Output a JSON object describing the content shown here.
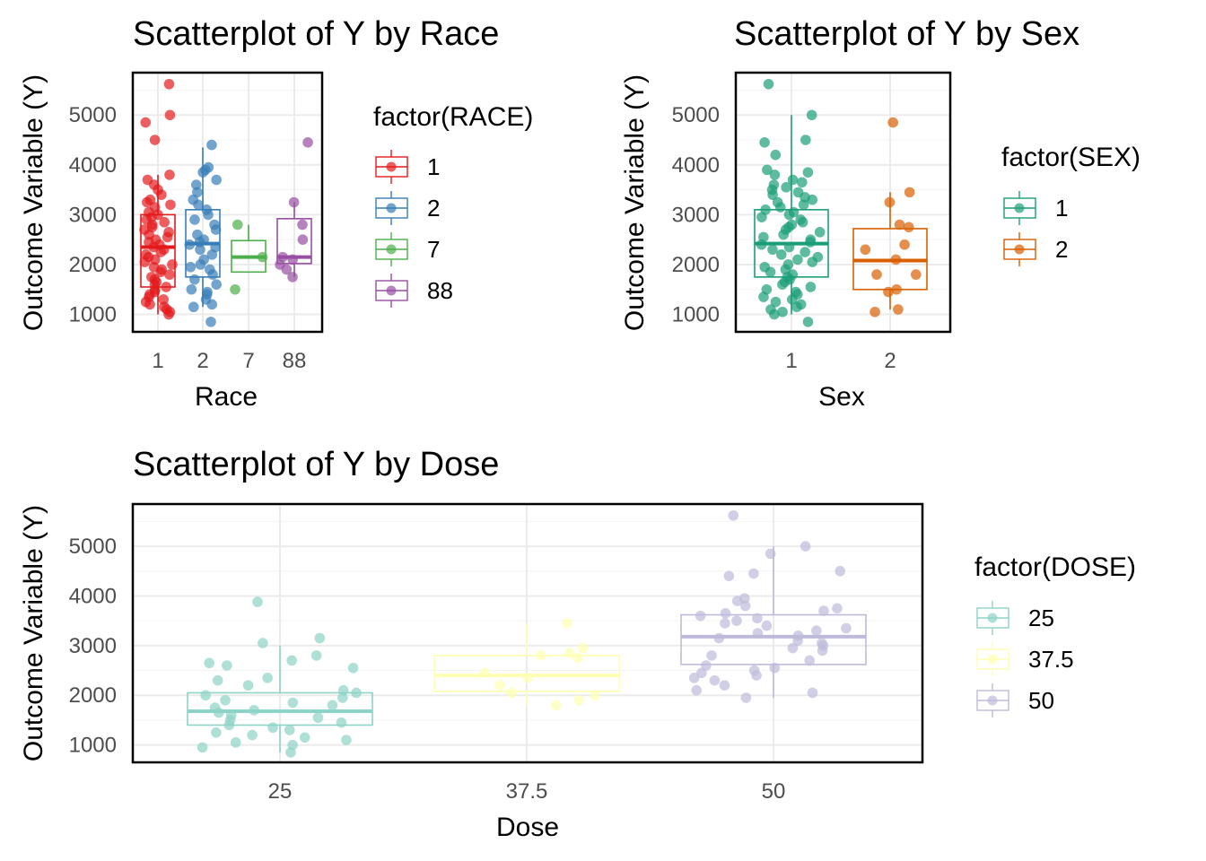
{
  "chart_data": [
    {
      "type": "box",
      "title": "Scatterplot of Y by Race",
      "xlabel": "Race",
      "ylabel": "Outcome Variable (Y)",
      "ylim": [
        650,
        5850
      ],
      "yticks": [
        1000,
        2000,
        3000,
        4000,
        5000
      ],
      "categories": [
        "1",
        "2",
        "7",
        "88"
      ],
      "legend": {
        "title": "factor(RACE)",
        "placement": "right",
        "labels": [
          "1",
          "2",
          "7",
          "88"
        ]
      },
      "colors": [
        "#e41a1c",
        "#377eb8",
        "#4daf4a",
        "#984ea3"
      ],
      "box_stats": [
        {
          "min": 1000,
          "q1": 1550,
          "median": 2350,
          "q3": 3000,
          "max": 3800
        },
        {
          "min": 1150,
          "q1": 1750,
          "median": 2420,
          "q3": 3100,
          "max": 4350
        },
        {
          "min": 1850,
          "q1": 1850,
          "median": 2150,
          "q3": 2480,
          "max": 2800
        },
        {
          "min": 1750,
          "q1": 2020,
          "median": 2150,
          "q3": 2920,
          "max": 3250
        }
      ],
      "points": [
        [
          5620,
          5000,
          4850,
          4500,
          3800,
          3700,
          3600,
          3500,
          3400,
          3300,
          3250,
          3200,
          3150,
          3050,
          3000,
          2950,
          2900,
          2850,
          2800,
          2750,
          2700,
          2650,
          2600,
          2550,
          2500,
          2450,
          2400,
          2350,
          2300,
          2250,
          2200,
          2150,
          2100,
          2050,
          2000,
          1950,
          1900,
          1850,
          1800,
          1750,
          1700,
          1650,
          1600,
          1550,
          1500,
          1450,
          1400,
          1350,
          1300,
          1250,
          1200,
          1150,
          1100,
          1050,
          1000
        ],
        [
          4400,
          3950,
          3900,
          3850,
          3700,
          3600,
          3450,
          3300,
          3200,
          3100,
          3000,
          2900,
          2800,
          2700,
          2600,
          2500,
          2450,
          2400,
          2350,
          2300,
          2200,
          2100,
          2000,
          1950,
          1900,
          1800,
          1700,
          1600,
          1500,
          1450,
          1400,
          1300,
          1200,
          1150,
          850
        ],
        [
          2800,
          2150,
          1500
        ],
        [
          4450,
          3250,
          2800,
          2500,
          2150,
          2100,
          2000,
          1900,
          1750
        ]
      ]
    },
    {
      "type": "box",
      "title": "Scatterplot of Y by Sex",
      "xlabel": "Sex",
      "ylabel": "Outcome Variable (Y)",
      "ylim": [
        650,
        5850
      ],
      "yticks": [
        1000,
        2000,
        3000,
        4000,
        5000
      ],
      "categories": [
        "1",
        "2"
      ],
      "legend": {
        "title": "factor(SEX)",
        "placement": "right",
        "labels": [
          "1",
          "2"
        ]
      },
      "colors": [
        "#1b9e77",
        "#d95f02"
      ],
      "box_stats": [
        {
          "min": 1000,
          "q1": 1750,
          "median": 2420,
          "q3": 3100,
          "max": 5000
        },
        {
          "min": 1100,
          "q1": 1500,
          "median": 2080,
          "q3": 2720,
          "max": 3450
        }
      ],
      "points": [
        [
          5620,
          5000,
          4500,
          4450,
          4200,
          3900,
          3850,
          3800,
          3700,
          3650,
          3600,
          3550,
          3500,
          3450,
          3400,
          3350,
          3300,
          3250,
          3200,
          3150,
          3100,
          3050,
          3000,
          2950,
          2900,
          2850,
          2800,
          2750,
          2700,
          2650,
          2600,
          2550,
          2500,
          2450,
          2400,
          2350,
          2300,
          2250,
          2200,
          2150,
          2100,
          2050,
          2000,
          1950,
          1900,
          1850,
          1800,
          1750,
          1700,
          1650,
          1600,
          1550,
          1500,
          1450,
          1400,
          1350,
          1300,
          1250,
          1200,
          1150,
          1100,
          1050,
          1000,
          850
        ],
        [
          4850,
          3450,
          3250,
          2800,
          2750,
          2400,
          2300,
          2100,
          1800,
          1800,
          1500,
          1450,
          1100,
          1050
        ]
      ]
    },
    {
      "type": "box",
      "title": "Scatterplot of Y by Dose",
      "xlabel": "Dose",
      "ylabel": "Outcome Variable (Y)",
      "ylim": [
        650,
        5850
      ],
      "yticks": [
        1000,
        2000,
        3000,
        4000,
        5000
      ],
      "categories": [
        "25",
        "37.5",
        "50"
      ],
      "legend": {
        "title": "factor(DOSE)",
        "placement": "right",
        "labels": [
          "25",
          "37.5",
          "50"
        ]
      },
      "colors": [
        "#8dd3c7",
        "#ffffb3",
        "#bebada"
      ],
      "box_stats": [
        {
          "min": 850,
          "q1": 1400,
          "median": 1680,
          "q3": 2050,
          "max": 3000
        },
        {
          "min": 1800,
          "q1": 2080,
          "median": 2400,
          "q3": 2800,
          "max": 3450
        },
        {
          "min": 1950,
          "q1": 2620,
          "median": 3180,
          "q3": 3620,
          "max": 5000
        }
      ],
      "points": [
        [
          3880,
          3150,
          3050,
          2800,
          2700,
          2650,
          2600,
          2550,
          2350,
          2300,
          2200,
          2100,
          2050,
          2000,
          1950,
          1900,
          1850,
          1800,
          1750,
          1700,
          1650,
          1600,
          1550,
          1500,
          1450,
          1400,
          1350,
          1300,
          1250,
          1200,
          1150,
          1100,
          1050,
          1000,
          950,
          850
        ],
        [
          3450,
          2950,
          2850,
          2800,
          2750,
          2450,
          2350,
          2200,
          2050,
          2000,
          1900,
          1800
        ],
        [
          5620,
          5000,
          4850,
          4500,
          4450,
          4400,
          3950,
          3900,
          3800,
          3750,
          3700,
          3650,
          3600,
          3550,
          3500,
          3450,
          3400,
          3350,
          3300,
          3250,
          3200,
          3150,
          3100,
          3050,
          3000,
          2950,
          2900,
          2800,
          2700,
          2600,
          2550,
          2500,
          2450,
          2400,
          2350,
          2300,
          2200,
          2100,
          2050,
          1950
        ]
      ]
    }
  ]
}
